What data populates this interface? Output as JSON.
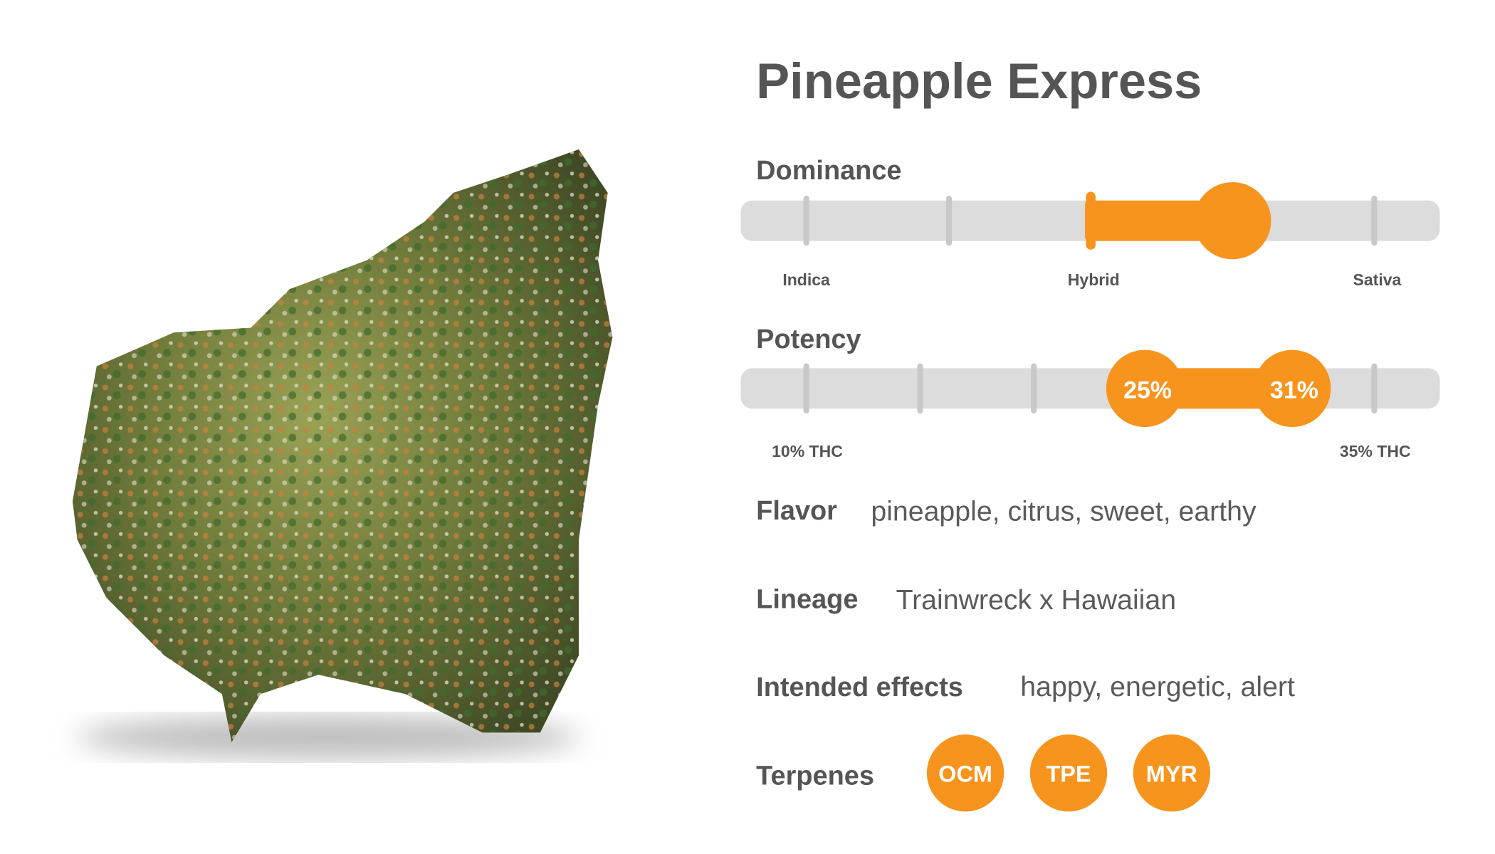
{
  "title": "Pineapple Express",
  "dominance": {
    "label": "Dominance",
    "scale": [
      "Indica",
      "Hybrid",
      "Sativa"
    ]
  },
  "potency": {
    "label": "Potency",
    "low": "25%",
    "high": "31%",
    "scale": [
      "10% THC",
      "35% THC"
    ]
  },
  "details": [
    {
      "label": "Flavor",
      "value": "pineapple, citrus, sweet, earthy"
    },
    {
      "label": "Lineage",
      "value": "Trainwreck x Hawaiian"
    },
    {
      "label": "Intended effects",
      "value": "happy, energetic, alert"
    }
  ],
  "terpenes": {
    "label": "Terpenes",
    "items": [
      "OCM",
      "TPE",
      "MYR"
    ]
  }
}
